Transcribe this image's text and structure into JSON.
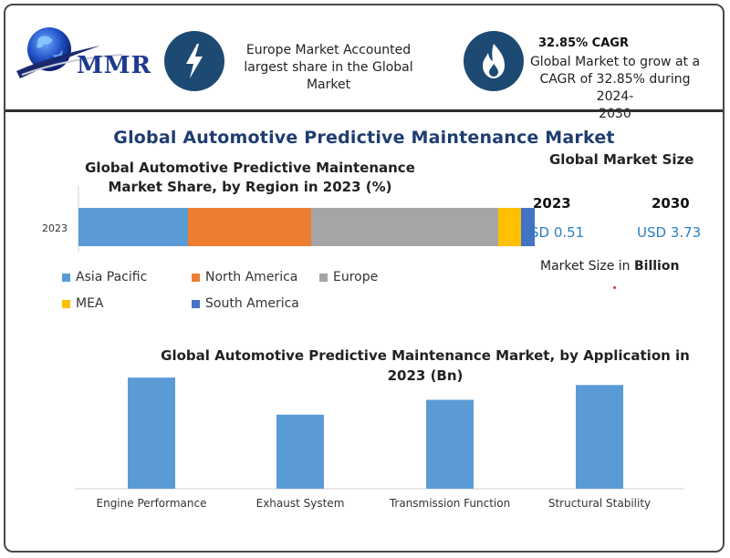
{
  "header": {
    "logo_text": "MMR",
    "feature1": {
      "icon": "lightning-bolt-icon",
      "lines": [
        "Europe Market Accounted",
        "largest share in the Global",
        "Market"
      ]
    },
    "feature2": {
      "icon": "flame-icon",
      "title": "32.85% CAGR",
      "lines": [
        "Global Market to grow at a",
        "CAGR of 32.85% during 2024-",
        "2030"
      ]
    }
  },
  "main_title": "Global Automotive Predictive Maintenance Market",
  "market_size": {
    "title": "Global Market Size",
    "year_a": "2023",
    "value_a": "USD 0.51",
    "year_b": "2030",
    "value_b": "USD 3.73",
    "unit_prefix": "Market Size in ",
    "unit_bold": "Billion"
  },
  "colors": {
    "asia": "#5b9bd5",
    "north_america": "#ed7d31",
    "europe": "#a5a5a5",
    "mea": "#ffc000",
    "south_america": "#4472c4",
    "app_bar": "#5b9bd5",
    "title_blue": "#1f3d70",
    "usd_blue": "#2a7fc1"
  },
  "chart_data": [
    {
      "type": "bar",
      "orientation": "horizontal-stacked",
      "title": "Global Automotive Predictive Maintenance Market Share, by Region in 2023 (%)",
      "categories": [
        "2023"
      ],
      "series": [
        {
          "name": "Asia Pacific",
          "values": [
            24
          ]
        },
        {
          "name": "North America",
          "values": [
            27
          ]
        },
        {
          "name": "Europe",
          "values": [
            41
          ]
        },
        {
          "name": "MEA",
          "values": [
            5
          ]
        },
        {
          "name": "South America",
          "values": [
            3
          ]
        }
      ],
      "xlim": [
        0,
        100
      ],
      "grid": false,
      "legend": "bottom"
    },
    {
      "type": "bar",
      "title": "Global Automotive Predictive Maintenance Market, by Application in 2023 (Bn)",
      "categories": [
        "Engine Performance",
        "Exhaust System",
        "Transmission Function",
        "Structural Stability"
      ],
      "values": [
        0.15,
        0.1,
        0.12,
        0.14
      ],
      "ylim": [
        0,
        0.16
      ],
      "grid": false,
      "legend": "none"
    }
  ]
}
